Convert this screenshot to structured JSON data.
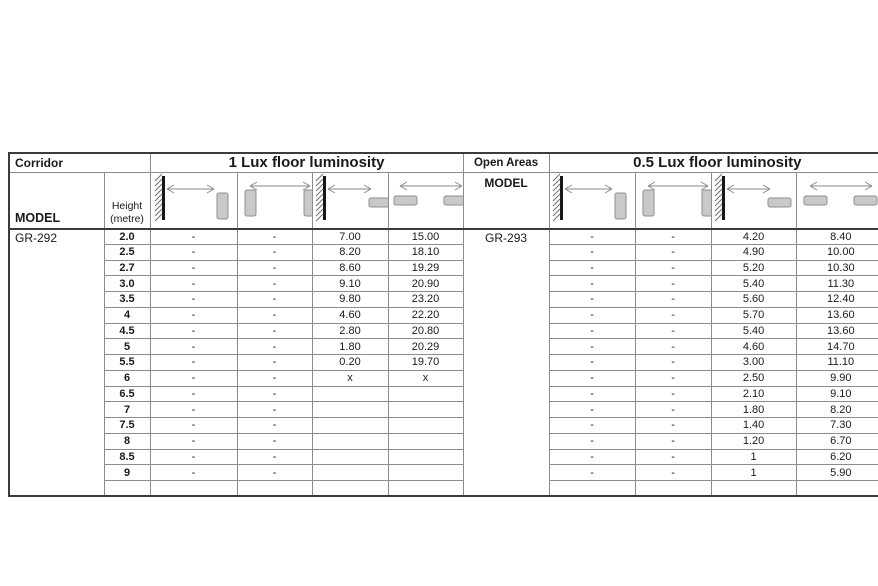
{
  "table": {
    "left": {
      "corner_label": "Corridor",
      "lux_header": "1 Lux floor luminosity",
      "model_header": "MODEL",
      "model_value": "GR-292",
      "height_header": [
        "Height",
        "(metre)"
      ],
      "diagrams": [
        {
          "icon": "wall-to-wall-detector-spacing-icon",
          "type": "wall-vdetector"
        },
        {
          "icon": "wall-detector-to-wall-detector-spacing-icon",
          "type": "vdetector-vdetector"
        },
        {
          "icon": "wall-to-ceiling-detector-spacing-icon",
          "type": "wall-hdetector"
        },
        {
          "icon": "ceiling-detector-to-ceiling-detector-spacing-icon",
          "type": "hdetector-hdetector"
        }
      ]
    },
    "right": {
      "corner_label": "Open Areas",
      "lux_header": "0.5 Lux floor luminosity",
      "model_header": "MODEL",
      "model_value": "GR-293",
      "diagrams": [
        {
          "icon": "wall-to-wall-detector-spacing-icon",
          "type": "wall-vdetector"
        },
        {
          "icon": "wall-detector-to-wall-detector-spacing-icon",
          "type": "vdetector-vdetector"
        },
        {
          "icon": "wall-to-ceiling-detector-spacing-icon",
          "type": "wall-hdetector"
        },
        {
          "icon": "ceiling-detector-to-ceiling-detector-spacing-icon",
          "type": "hdetector-hdetector"
        }
      ]
    },
    "heights": [
      "2.0",
      "2.5",
      "2.7",
      "3.0",
      "3.5",
      "4",
      "4.5",
      "5",
      "5.5",
      "6",
      "6.5",
      "7",
      "7.5",
      "8",
      "8.5",
      "9"
    ],
    "left_rows": [
      [
        "-",
        "-",
        "7.00",
        "15.00"
      ],
      [
        "-",
        "-",
        "8.20",
        "18.10"
      ],
      [
        "-",
        "-",
        "8.60",
        "19.29"
      ],
      [
        "-",
        "-",
        "9.10",
        "20.90"
      ],
      [
        "-",
        "-",
        "9.80",
        "23.20"
      ],
      [
        "-",
        "-",
        "4.60",
        "22.20"
      ],
      [
        "-",
        "-",
        "2.80",
        "20.80"
      ],
      [
        "-",
        "-",
        "1.80",
        "20.29"
      ],
      [
        "-",
        "-",
        "0.20",
        "19.70"
      ],
      [
        "-",
        "-",
        "x",
        "x"
      ],
      [
        "-",
        "-",
        "",
        ""
      ],
      [
        "-",
        "-",
        "",
        ""
      ],
      [
        "-",
        "-",
        "",
        ""
      ],
      [
        "-",
        "-",
        "",
        ""
      ],
      [
        "-",
        "-",
        "",
        ""
      ],
      [
        "-",
        "-",
        "",
        ""
      ]
    ],
    "right_rows": [
      [
        "-",
        "-",
        "4.20",
        "8.40"
      ],
      [
        "-",
        "-",
        "4.90",
        "10.00"
      ],
      [
        "-",
        "-",
        "5.20",
        "10.30"
      ],
      [
        "-",
        "-",
        "5.40",
        "11.30"
      ],
      [
        "-",
        "-",
        "5.60",
        "12.40"
      ],
      [
        "-",
        "-",
        "5.70",
        "13.60"
      ],
      [
        "-",
        "-",
        "5.40",
        "13.60"
      ],
      [
        "-",
        "-",
        "4.60",
        "14.70"
      ],
      [
        "-",
        "-",
        "3.00",
        "11.10"
      ],
      [
        "-",
        "-",
        "2.50",
        "9.90"
      ],
      [
        "-",
        "-",
        "2.10",
        "9.10"
      ],
      [
        "-",
        "-",
        "1.80",
        "8.20"
      ],
      [
        "-",
        "-",
        "1.40",
        "7.30"
      ],
      [
        "-",
        "-",
        "1.20",
        "6.70"
      ],
      [
        "-",
        "-",
        "1",
        "6.20"
      ],
      [
        "-",
        "-",
        "1",
        "5.90"
      ]
    ],
    "colors": {
      "grid_line": "#8c8c8c",
      "outer_border": "#3c3c3c",
      "detector_fill": "#c9c9c9",
      "detector_stroke": "#8f8f8f",
      "wall": "#161616",
      "arrow": "#8a8a8a"
    }
  }
}
